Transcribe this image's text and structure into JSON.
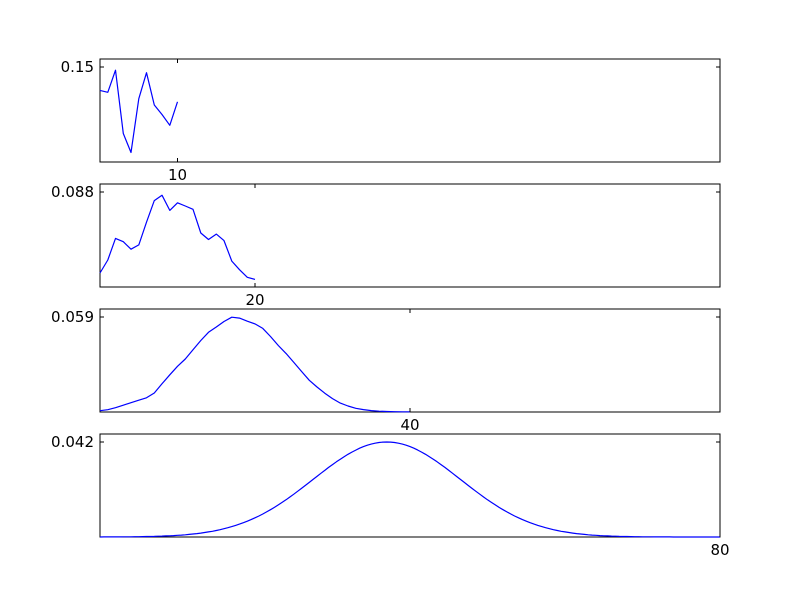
{
  "chart_data": [
    {
      "type": "line",
      "xlim": [
        0,
        80
      ],
      "ylim": [
        0,
        0.15
      ],
      "x_tick_label": "10",
      "y_tick_label": "0.15",
      "color": "#0000ff",
      "x": [
        0,
        1,
        2,
        3,
        4,
        5,
        6,
        7,
        8,
        9,
        10
      ],
      "values": [
        0.113,
        0.11,
        0.145,
        0.045,
        0.015,
        0.1,
        0.141,
        0.09,
        0.075,
        0.058,
        0.095
      ]
    },
    {
      "type": "line",
      "xlim": [
        0,
        80
      ],
      "ylim": [
        0,
        0.088
      ],
      "x_tick_label": "20",
      "y_tick_label": "0.088",
      "color": "#0000ff",
      "x": [
        0,
        1,
        2,
        3,
        4,
        5,
        6,
        7,
        8,
        9,
        10,
        11,
        12,
        13,
        14,
        15,
        16,
        17,
        18,
        19,
        20
      ],
      "values": [
        0.013,
        0.025,
        0.045,
        0.042,
        0.035,
        0.039,
        0.06,
        0.08,
        0.085,
        0.071,
        0.078,
        0.075,
        0.072,
        0.05,
        0.044,
        0.049,
        0.043,
        0.024,
        0.016,
        0.009,
        0.007
      ]
    },
    {
      "type": "line",
      "xlim": [
        0,
        80
      ],
      "ylim": [
        0,
        0.059
      ],
      "x_tick_label": "40",
      "y_tick_label": "0.059",
      "color": "#0000ff",
      "x": [
        0,
        1,
        2,
        3,
        4,
        5,
        6,
        7,
        8,
        9,
        10,
        11,
        12,
        13,
        14,
        15,
        16,
        17,
        18,
        19,
        20,
        21,
        22,
        23,
        24,
        25,
        26,
        27,
        28,
        29,
        30,
        31,
        32,
        33,
        34,
        35,
        36,
        37,
        38,
        39,
        40
      ],
      "values": [
        0.0008,
        0.0014,
        0.0027,
        0.0042,
        0.0058,
        0.0073,
        0.0088,
        0.0118,
        0.0175,
        0.0231,
        0.0284,
        0.0329,
        0.0386,
        0.0444,
        0.0495,
        0.0528,
        0.0562,
        0.0589,
        0.0583,
        0.0564,
        0.0547,
        0.0519,
        0.0469,
        0.0413,
        0.0364,
        0.0308,
        0.0252,
        0.0197,
        0.0155,
        0.0117,
        0.0083,
        0.0055,
        0.0037,
        0.0023,
        0.0015,
        0.0009,
        0.0005,
        0.0003,
        0.0002,
        0.0001,
        0.0001
      ]
    },
    {
      "type": "line",
      "xlim": [
        0,
        80
      ],
      "ylim": [
        0,
        0.042
      ],
      "x_tick_label": "80",
      "y_tick_label": "0.042",
      "color": "#0000ff",
      "normal_mean": 37,
      "normal_sd": 9.5,
      "x_range": [
        0,
        80
      ]
    }
  ]
}
